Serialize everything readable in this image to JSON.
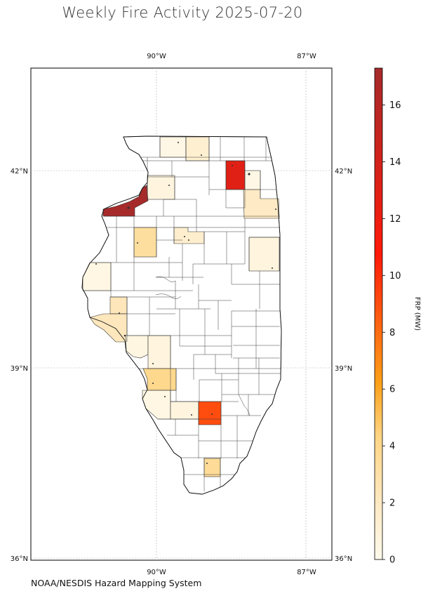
{
  "title": "Weekly Fire Activity 2025-07-20",
  "source": "NOAA/NESDIS Hazard Mapping System",
  "map": {
    "region": "Illinois",
    "lon_range": [
      -92.5,
      -86.5
    ],
    "lat_range": [
      35.95,
      43.4
    ],
    "lon_ticks": [
      {
        "value": -90,
        "label": "90°W"
      },
      {
        "value": -87,
        "label": "87°W"
      }
    ],
    "lat_ticks": [
      {
        "value": 42,
        "label": "42°N"
      },
      {
        "value": 39,
        "label": "39°N"
      },
      {
        "value": 36,
        "label": "36°N"
      }
    ],
    "grid": true
  },
  "colorbar": {
    "label": "FRP (MW)",
    "min": 0,
    "max": 17.3,
    "ticks": [
      0,
      2,
      4,
      6,
      8,
      10,
      12,
      14,
      16
    ],
    "colors": {
      "low": "#fffaeb",
      "light": "#fee8c0",
      "mid": "#fed584",
      "orange": "#fea018",
      "red": "#ff1a0a",
      "dark": "#a52a2a"
    }
  },
  "fire_counties": [
    {
      "value": 0.3
    },
    {
      "value": 1.3
    },
    {
      "value": 0.6
    },
    {
      "value": 13.0
    },
    {
      "value": 0.3
    },
    {
      "value": 1.9
    },
    {
      "value": 17.2
    },
    {
      "value": 3.3
    },
    {
      "value": 1.4
    },
    {
      "value": 0.7
    },
    {
      "value": 0.4
    },
    {
      "value": 2.3
    },
    {
      "value": 2.2
    },
    {
      "value": 0.5
    },
    {
      "value": 0.7
    },
    {
      "value": 4.0
    },
    {
      "value": 0.4
    },
    {
      "value": 0.6
    },
    {
      "value": 9.0
    },
    {
      "value": 3.6
    }
  ]
}
